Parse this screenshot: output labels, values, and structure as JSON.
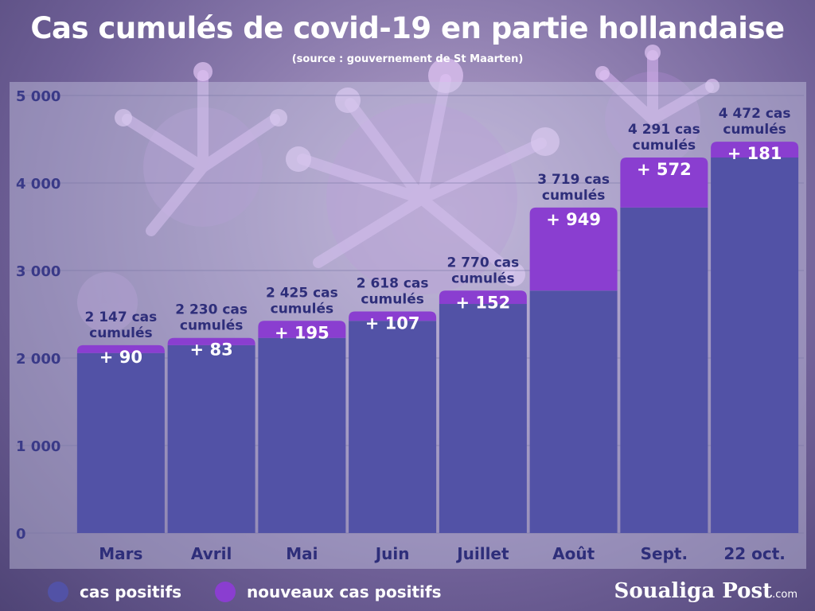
{
  "header": {
    "title": "Cas cumulés de covid-19 en partie hollandaise",
    "subtitle": "(source : gouvernement de St Maarten)"
  },
  "chart_data": {
    "type": "bar",
    "stacked": true,
    "categories": [
      "Mars",
      "Avril",
      "Mai",
      "Juin",
      "Juillet",
      "Août",
      "Sept.",
      "22 oct."
    ],
    "series": [
      {
        "name": "cas positifs",
        "color": "#5252a6",
        "values": [
          2057,
          2147,
          2230,
          2425,
          2618,
          2770,
          3719,
          4291
        ]
      },
      {
        "name": "nouveaux cas positifs",
        "color": "#8a3ed0",
        "values": [
          90,
          83,
          195,
          107,
          152,
          949,
          572,
          181
        ]
      }
    ],
    "increment_labels": [
      "+ 90",
      "+ 83",
      "+ 195",
      "+ 107",
      "+ 152",
      "+ 949",
      "+ 572",
      "+ 181"
    ],
    "total_labels": [
      [
        "2 147 cas",
        "cumulés"
      ],
      [
        "2 230 cas",
        "cumulés"
      ],
      [
        "2 425 cas",
        "cumulés"
      ],
      [
        "2 618 cas",
        "cumulés"
      ],
      [
        "2 770 cas",
        "cumulés"
      ],
      [
        "3  719 cas",
        "cumulés"
      ],
      [
        "4 291 cas",
        "cumulés"
      ],
      [
        "4 472 cas",
        "cumulés"
      ]
    ],
    "y_ticks": [
      "0",
      "1 000",
      "2 000",
      "3 000",
      "4 000",
      "5 000"
    ],
    "ylim": [
      0,
      5000
    ],
    "grid": true
  },
  "legend": {
    "items": [
      {
        "label": "cas positifs",
        "color": "#5252a6"
      },
      {
        "label": "nouveaux cas positifs",
        "color": "#8a3ed0"
      }
    ]
  },
  "brand": {
    "name": "Soualiga Post",
    "suffix": ".com"
  }
}
